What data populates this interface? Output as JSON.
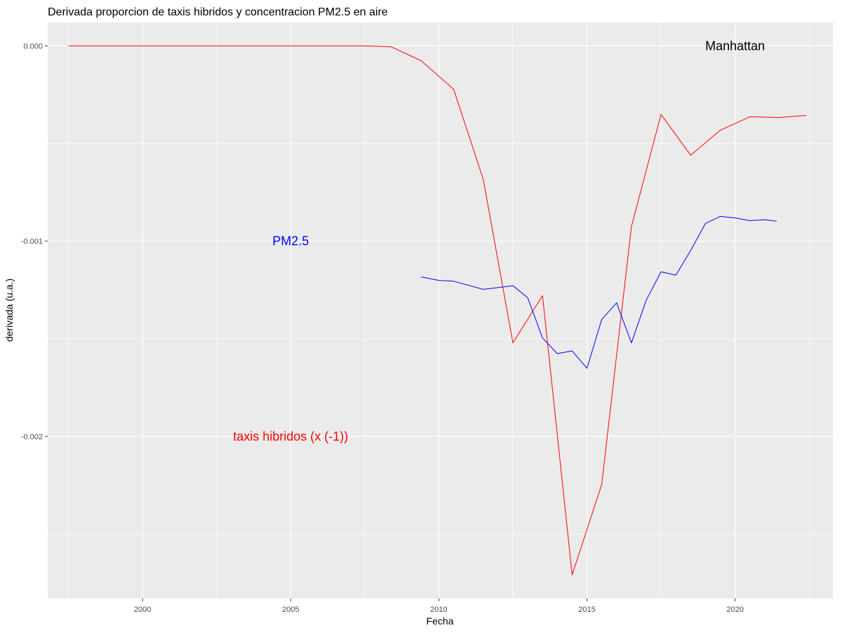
{
  "chart_data": {
    "type": "line",
    "title": "Derivada proporcion de taxis hibridos y concentracion PM2.5 en aire",
    "xlabel": "Fecha",
    "ylabel": "derivada (u.a.)",
    "xlim": [
      1996.8,
      2023.3
    ],
    "ylim": [
      -0.00283,
      0.00012
    ],
    "x_ticks": [
      2000,
      2005,
      2010,
      2015,
      2020
    ],
    "x_tick_labels": [
      "2000",
      "2005",
      "2010",
      "2015",
      "2020"
    ],
    "y_ticks": [
      0,
      -0.001,
      -0.002
    ],
    "y_tick_labels": [
      "0.000",
      "-0.001",
      "-0.002"
    ],
    "grid": true,
    "annotations": [
      {
        "text": "Manhattan",
        "x": 2020.0,
        "y": 0.0,
        "color": "#000000"
      },
      {
        "text": "PM2.5",
        "x": 2005.0,
        "y": -0.001,
        "color": "#0000ff"
      },
      {
        "text": "taxis hibridos (x (-1))",
        "x": 2005.0,
        "y": -0.002,
        "color": "#ff0000"
      }
    ],
    "series": [
      {
        "color": "#ff0000",
        "x": [
          1997.5,
          1998.5,
          1999.5,
          2000.5,
          2001.5,
          2002.5,
          2003.5,
          2004.5,
          2005.5,
          2006.5,
          2007.5,
          2008.4,
          2009.4,
          2010.5,
          2011.5,
          2012.5,
          2013.5,
          2014.5,
          2015.5,
          2016.5,
          2017.5,
          2018.5,
          2019.5,
          2020.5,
          2021.5,
          2022.4
        ],
        "values": [
          0.0,
          0.0,
          0.0,
          0.0,
          0.0,
          0.0,
          0.0,
          0.0,
          0.0,
          0.0,
          0.0,
          -5e-06,
          -7.6e-05,
          -0.000222,
          -0.000683,
          -0.001521,
          -0.001279,
          -0.002709,
          -0.002245,
          -0.000925,
          -0.000351,
          -0.00056,
          -0.000432,
          -0.000363,
          -0.000367,
          -0.000356
        ]
      },
      {
        "color": "#0000ff",
        "x": [
          2009.4,
          2010.0,
          2010.5,
          2011.5,
          2012.5,
          2013.0,
          2013.5,
          2014.0,
          2014.5,
          2015.0,
          2015.5,
          2016.0,
          2016.5,
          2017.0,
          2017.5,
          2018.0,
          2018.5,
          2019.0,
          2019.5,
          2020.0,
          2020.5,
          2021.0,
          2021.4
        ],
        "values": [
          -0.001183,
          -0.001201,
          -0.001205,
          -0.001247,
          -0.001228,
          -0.00129,
          -0.001496,
          -0.001576,
          -0.001562,
          -0.001651,
          -0.001401,
          -0.001316,
          -0.001521,
          -0.001302,
          -0.001157,
          -0.001174,
          -0.001048,
          -0.000909,
          -0.000873,
          -0.000881,
          -0.000895,
          -0.00089,
          -0.000898
        ]
      }
    ]
  }
}
